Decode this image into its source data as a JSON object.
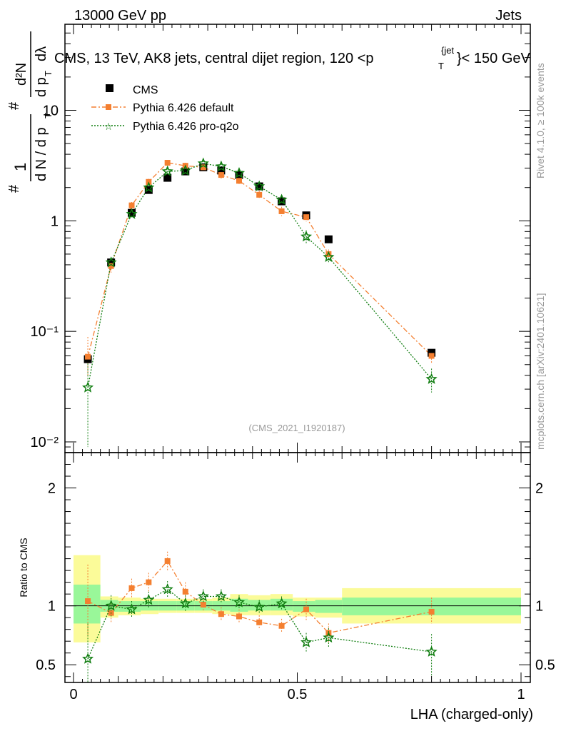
{
  "header": {
    "left": "13000 GeV pp",
    "right": "Jets",
    "title_main": "CMS, 13 TeV, AK8 jets, central dijet region, 120 <p",
    "title_sup": "{jet",
    "title_sub": "T",
    "title_tail": "}< 150 GeV",
    "watermark": "(CMS_2021_I1920187)",
    "side_top": "Rivet 4.1.0, ≥ 100k events",
    "side_bottom": "mcplots.cern.ch [arXiv:2401.10621]"
  },
  "ylabel_main": {
    "hash1": "#",
    "one": "1",
    "dn": "d N / d p",
    "dn_sub": "T",
    "hash2": "#",
    "d2n": "d²N",
    "dpt": "d p",
    "dpt_sub": "T",
    "dlambda": "dλ"
  },
  "colors": {
    "cms": "#000000",
    "default": "#f47f30",
    "proq2o": "#0f7d0f",
    "band_inner": "#99f799",
    "band_outer": "#fbfb99"
  },
  "chart_data": [
    {
      "type": "scatter",
      "title": "CMS, 13 TeV, AK8 jets, central dijet region, 120 <pT(jet)< 150 GeV",
      "xlabel": "LHA (charged-only)",
      "ylabel": "1/(dN/dpT) d²N/(dpT dλ)",
      "xlim": [
        0,
        1
      ],
      "ylim": [
        0.008,
        60
      ],
      "yscale": "log",
      "ytick_labels": [
        "10⁻²",
        "10⁻¹",
        "1",
        "10"
      ],
      "legend_position": "top-left",
      "series": [
        {
          "name": "CMS",
          "marker": "square",
          "x": [
            0.032,
            0.084,
            0.13,
            0.168,
            0.21,
            0.25,
            0.29,
            0.33,
            0.37,
            0.415,
            0.465,
            0.52,
            0.57,
            0.8
          ],
          "y": [
            0.056,
            0.42,
            1.18,
            1.9,
            2.45,
            2.8,
            3.05,
            2.85,
            2.6,
            2.05,
            1.5,
            1.12,
            0.68,
            0.064
          ]
        },
        {
          "name": "Pythia 6.426 default",
          "marker": "filled-square",
          "line": "dash-dot",
          "x": [
            0.032,
            0.084,
            0.13,
            0.168,
            0.21,
            0.25,
            0.29,
            0.33,
            0.37,
            0.415,
            0.465,
            0.52,
            0.57,
            0.8
          ],
          "y": [
            0.059,
            0.39,
            1.38,
            2.25,
            3.35,
            3.15,
            3.05,
            2.6,
            2.3,
            1.72,
            1.22,
            1.08,
            0.5,
            0.06
          ],
          "err_lo": [
            0.02,
            0.05,
            0.1,
            0.15,
            0.2,
            0.2,
            0.2,
            0.2,
            0.2,
            0.15,
            0.12,
            0.1,
            0.05,
            0.008
          ],
          "err_hi": [
            0.03,
            0.05,
            0.1,
            0.15,
            0.2,
            0.2,
            0.2,
            0.2,
            0.2,
            0.15,
            0.12,
            0.1,
            0.05,
            0.008
          ]
        },
        {
          "name": "Pythia 6.426 pro-q2o",
          "marker": "star",
          "line": "dotted",
          "x": [
            0.032,
            0.084,
            0.13,
            0.168,
            0.21,
            0.25,
            0.29,
            0.33,
            0.37,
            0.415,
            0.465,
            0.52,
            0.57,
            0.8
          ],
          "y": [
            0.031,
            0.42,
            1.15,
            2.0,
            2.8,
            2.85,
            3.3,
            3.1,
            2.7,
            2.05,
            1.55,
            0.72,
            0.47,
            0.037
          ],
          "err_lo": [
            0.022,
            0.05,
            0.1,
            0.15,
            0.2,
            0.2,
            0.2,
            0.2,
            0.2,
            0.15,
            0.12,
            0.1,
            0.05,
            0.009
          ],
          "err_hi": [
            0.02,
            0.05,
            0.1,
            0.15,
            0.2,
            0.2,
            0.2,
            0.2,
            0.2,
            0.15,
            0.12,
            0.1,
            0.05,
            0.009
          ]
        }
      ]
    },
    {
      "type": "scatter",
      "title": "",
      "xlabel": "LHA (charged-only)",
      "ylabel": "Ratio to CMS",
      "xlim": [
        0,
        1
      ],
      "ylim": [
        0.35,
        2.3
      ],
      "yticks": [
        0.5,
        1,
        2
      ],
      "ytick_labels": [
        "0.5",
        "1",
        "2"
      ],
      "xticks": [
        0,
        0.5,
        1
      ],
      "xtick_labels": [
        "0",
        "0.5",
        "1"
      ],
      "bands": {
        "edges": [
          0,
          0.06,
          0.1,
          0.15,
          0.19,
          0.23,
          0.27,
          0.31,
          0.35,
          0.39,
          0.44,
          0.49,
          0.54,
          0.6,
          1.0
        ],
        "outer_lo": [
          0.69,
          0.9,
          0.92,
          0.93,
          0.94,
          0.94,
          0.94,
          0.93,
          0.92,
          0.92,
          0.92,
          0.91,
          0.9,
          0.85
        ],
        "outer_hi": [
          1.43,
          1.08,
          1.07,
          1.06,
          1.06,
          1.06,
          1.06,
          1.07,
          1.1,
          1.09,
          1.1,
          1.07,
          1.07,
          1.15
        ],
        "inner_lo": [
          0.85,
          0.95,
          0.95,
          0.96,
          0.96,
          0.96,
          0.96,
          0.96,
          0.95,
          0.96,
          0.96,
          0.95,
          0.94,
          0.92
        ],
        "inner_hi": [
          1.18,
          1.05,
          1.04,
          1.04,
          1.04,
          1.04,
          1.04,
          1.04,
          1.06,
          1.05,
          1.06,
          1.04,
          1.05,
          1.07
        ]
      },
      "series": [
        {
          "name": "Pythia 6.426 default",
          "x": [
            0.032,
            0.084,
            0.13,
            0.168,
            0.21,
            0.25,
            0.29,
            0.33,
            0.37,
            0.415,
            0.465,
            0.52,
            0.57,
            0.8
          ],
          "y": [
            1.04,
            0.94,
            1.15,
            1.2,
            1.38,
            1.12,
            1.01,
            0.93,
            0.91,
            0.86,
            0.83,
            0.97,
            0.77,
            0.95
          ],
          "err_lo": [
            0.3,
            0.08,
            0.08,
            0.08,
            0.08,
            0.08,
            0.06,
            0.06,
            0.06,
            0.06,
            0.06,
            0.09,
            0.08,
            0.1
          ],
          "err_hi": [
            0.31,
            0.08,
            0.08,
            0.08,
            0.08,
            0.08,
            0.06,
            0.06,
            0.06,
            0.06,
            0.06,
            0.09,
            0.08,
            0.12
          ]
        },
        {
          "name": "Pythia 6.426 pro-q2o",
          "x": [
            0.032,
            0.084,
            0.13,
            0.168,
            0.21,
            0.25,
            0.29,
            0.33,
            0.37,
            0.415,
            0.465,
            0.52,
            0.57,
            0.8
          ],
          "y": [
            0.55,
            1.0,
            0.97,
            1.05,
            1.14,
            1.02,
            1.08,
            1.08,
            1.03,
            0.99,
            1.02,
            0.69,
            0.73,
            0.61
          ],
          "err_lo": [
            0.3,
            0.09,
            0.07,
            0.07,
            0.07,
            0.07,
            0.06,
            0.06,
            0.06,
            0.06,
            0.06,
            0.08,
            0.08,
            0.2
          ],
          "err_hi": [
            0.3,
            0.09,
            0.07,
            0.07,
            0.07,
            0.07,
            0.06,
            0.06,
            0.06,
            0.06,
            0.06,
            0.08,
            0.08,
            0.15
          ]
        }
      ]
    }
  ]
}
